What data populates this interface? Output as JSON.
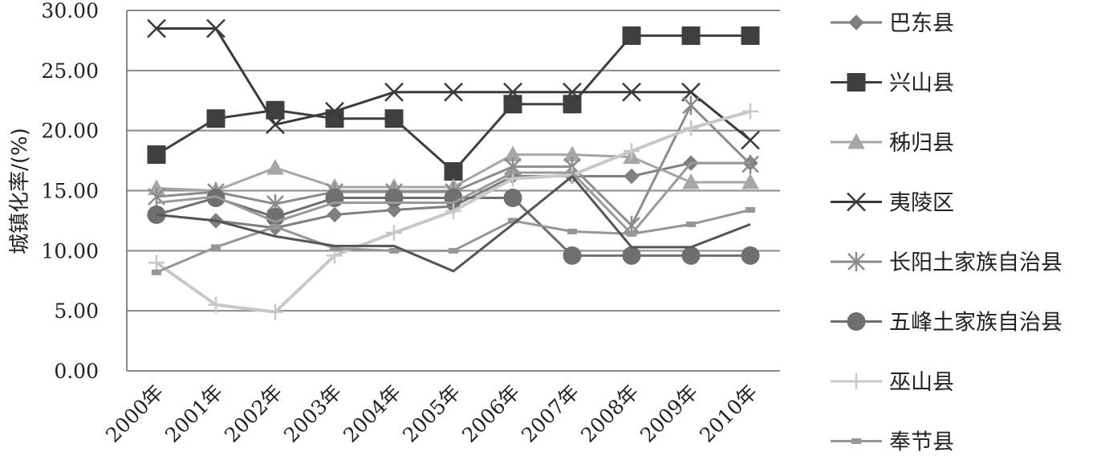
{
  "chart_data": {
    "type": "line",
    "ylabel": "城镇化率/(%)",
    "ylim": [
      0,
      30
    ],
    "yticks": [
      "0.00",
      "5.00",
      "10.00",
      "15.00",
      "20.00",
      "25.00",
      "30.00"
    ],
    "categories": [
      "2000年",
      "2001年",
      "2002年",
      "2003年",
      "2004年",
      "2005年",
      "2006年",
      "2007年",
      "2008年",
      "2009年",
      "2010年"
    ],
    "grid": true,
    "legend_position": "right",
    "series": [
      {
        "name": "巴东县",
        "marker": "diamond",
        "color": "#7f7f7f",
        "values": [
          13.0,
          12.5,
          11.9,
          13.0,
          13.4,
          13.7,
          16.2,
          16.2,
          16.2,
          17.3,
          17.3
        ]
      },
      {
        "name": "兴山县",
        "marker": "square",
        "color": "#3f3f3f",
        "values": [
          18.0,
          21.0,
          21.7,
          21.0,
          21.0,
          16.6,
          22.2,
          22.2,
          27.9,
          27.9,
          27.9
        ]
      },
      {
        "name": "秭归县",
        "marker": "triangle",
        "color": "#a6a6a6",
        "values": [
          15.2,
          15.0,
          16.9,
          15.3,
          15.3,
          15.3,
          18.0,
          18.0,
          17.8,
          15.7,
          15.7
        ]
      },
      {
        "name": "夷陵区",
        "marker": "x",
        "color": "#3a3a3a",
        "values": [
          28.5,
          28.5,
          20.5,
          21.6,
          23.2,
          23.2,
          23.2,
          23.2,
          23.2,
          23.2,
          19.2
        ]
      },
      {
        "name": "长阳土家族自治县",
        "marker": "star",
        "color": "#8c8c8c",
        "values": [
          14.5,
          14.9,
          13.9,
          14.9,
          14.9,
          14.9,
          17.0,
          17.0,
          12.1,
          22.1,
          17.2
        ]
      },
      {
        "name": "五峰土家族自治县",
        "marker": "circle",
        "color": "#6f6f6f",
        "values": [
          13.0,
          14.4,
          12.8,
          14.4,
          14.4,
          14.4,
          14.4,
          9.6,
          9.6,
          9.6,
          9.6
        ]
      },
      {
        "name": "巫山县",
        "marker": "plus",
        "color": "#c8c8c8",
        "values": [
          9.0,
          5.5,
          4.9,
          9.6,
          11.5,
          13.3,
          16.0,
          16.3,
          18.3,
          20.2,
          21.6
        ]
      },
      {
        "name": "奉节县",
        "marker": "dash",
        "color": "#969696",
        "values": [
          8.2,
          10.3,
          12.0,
          10.2,
          10.0,
          10.0,
          12.5,
          11.6,
          11.4,
          12.2,
          13.4
        ]
      },
      {
        "name": "",
        "marker": "none",
        "color": "#555555",
        "values": [
          13.0,
          12.5,
          11.2,
          10.4,
          10.4,
          8.3,
          12.2,
          16.2,
          10.3,
          10.3,
          12.2
        ]
      },
      {
        "name": "",
        "marker": "none",
        "color": "#999999",
        "values": [
          14.0,
          14.5,
          12.4,
          14.0,
          14.0,
          14.0,
          16.5,
          16.5,
          11.4,
          17.3,
          17.3
        ]
      }
    ]
  }
}
